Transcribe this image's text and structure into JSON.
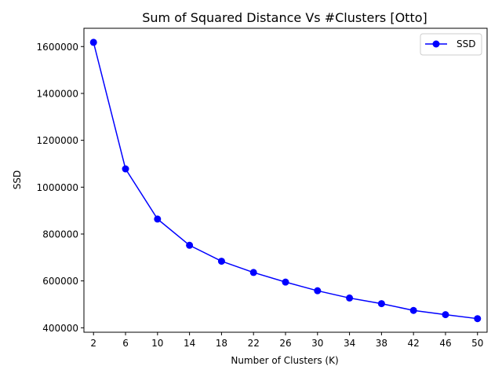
{
  "chart_data": {
    "type": "line",
    "title": "Sum of Squared Distance Vs #Clusters [Otto]",
    "xlabel": "Number of Clusters (K)",
    "ylabel": "SSD",
    "x": [
      2,
      6,
      10,
      14,
      18,
      22,
      26,
      30,
      34,
      38,
      42,
      46,
      50
    ],
    "x_ticks": [
      "2",
      "6",
      "10",
      "14",
      "18",
      "22",
      "26",
      "30",
      "34",
      "38",
      "42",
      "46",
      "50"
    ],
    "y_ticks": [
      400000,
      600000,
      800000,
      1000000,
      1200000,
      1400000,
      1600000
    ],
    "y_tick_labels": [
      "400000",
      "600000",
      "800000",
      "1000000",
      "1200000",
      "1400000",
      "1600000"
    ],
    "xlim": [
      0.8,
      51.2
    ],
    "ylim": [
      381000,
      1678000
    ],
    "series": [
      {
        "name": "SSD",
        "color": "#0000ff",
        "marker": "circle",
        "values": [
          1618000,
          1078000,
          864000,
          752000,
          684000,
          636000,
          595000,
          558000,
          527000,
          503000,
          474000,
          456000,
          439000
        ]
      }
    ],
    "legend": {
      "position": "top-right"
    },
    "grid": false
  }
}
